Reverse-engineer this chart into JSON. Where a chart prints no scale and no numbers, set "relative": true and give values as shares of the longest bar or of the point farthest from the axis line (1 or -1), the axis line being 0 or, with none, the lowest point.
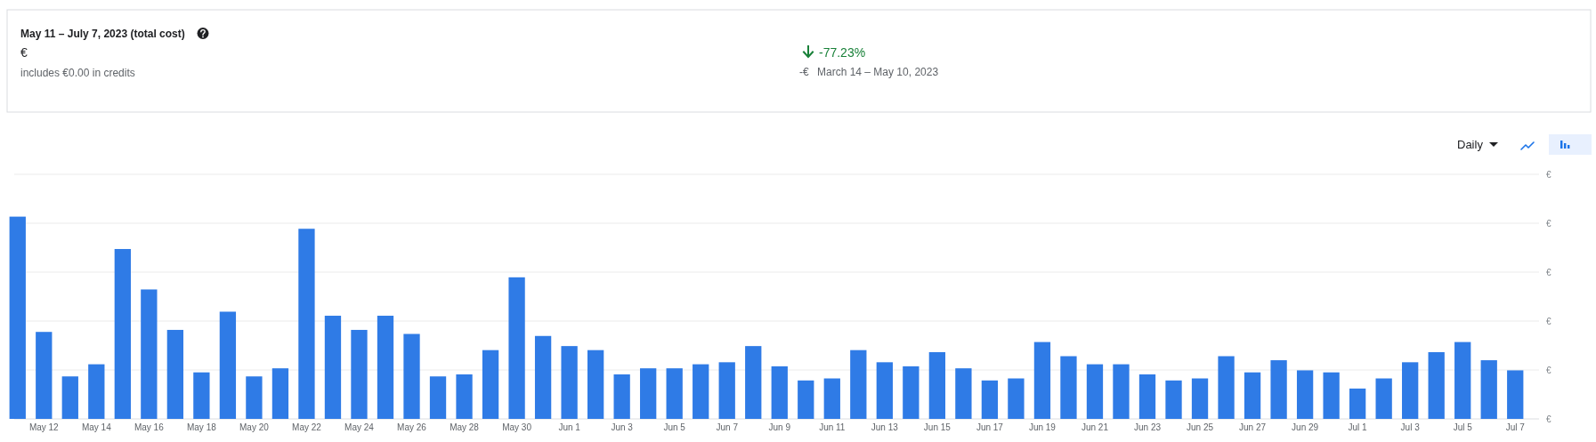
{
  "chart_data": {
    "type": "bar",
    "title": "May 11 – July 7, 2023 (total cost)",
    "annotations": [
      "€",
      "includes €0.00 in credits",
      "-77.23%",
      "-€",
      "March 14 – May 10, 2023",
      "Daily",
      "€",
      "€",
      "€",
      "€",
      "€",
      "€"
    ],
    "categories": [
      null,
      "May 12",
      null,
      "May 14",
      null,
      "May 16",
      null,
      "May 18",
      null,
      "May 20",
      null,
      "May 22",
      null,
      "May 24",
      null,
      "May 26",
      null,
      "May 28",
      null,
      "May 30",
      null,
      "Jun 1",
      null,
      "Jun 3",
      null,
      "Jun 5",
      null,
      "Jun 7",
      null,
      "Jun 9",
      null,
      "Jun 11",
      null,
      "Jun 13",
      null,
      "Jun 15",
      null,
      "Jun 17",
      null,
      "Jun 19",
      null,
      "Jun 21",
      null,
      "Jun 23",
      null,
      "Jun 25",
      null,
      "Jun 27",
      null,
      "Jun 29",
      null,
      "Jul 1",
      null,
      "Jul 3",
      null,
      "Jul 5",
      null,
      "Jul 7"
    ],
    "values": [
      1.0,
      0.43,
      0.21,
      0.27,
      0.84,
      0.64,
      0.44,
      0.23,
      0.53,
      0.21,
      0.25,
      0.94,
      0.51,
      0.44,
      0.51,
      0.42,
      0.21,
      0.22,
      0.34,
      0.7,
      0.41,
      0.36,
      0.34,
      0.22,
      0.25,
      0.25,
      0.27,
      0.28,
      0.36,
      0.26,
      0.19,
      0.2,
      0.34,
      0.28,
      0.26,
      0.33,
      0.25,
      0.19,
      0.2,
      0.38,
      0.31,
      0.27,
      0.27,
      0.22,
      0.19,
      0.2,
      0.31,
      0.23,
      0.29,
      0.24,
      0.23,
      0.15,
      0.2,
      0.28,
      0.33,
      0.38,
      0.29,
      0.24
    ],
    "color": "#2f7be6",
    "relative": true,
    "grid": "y"
  }
}
